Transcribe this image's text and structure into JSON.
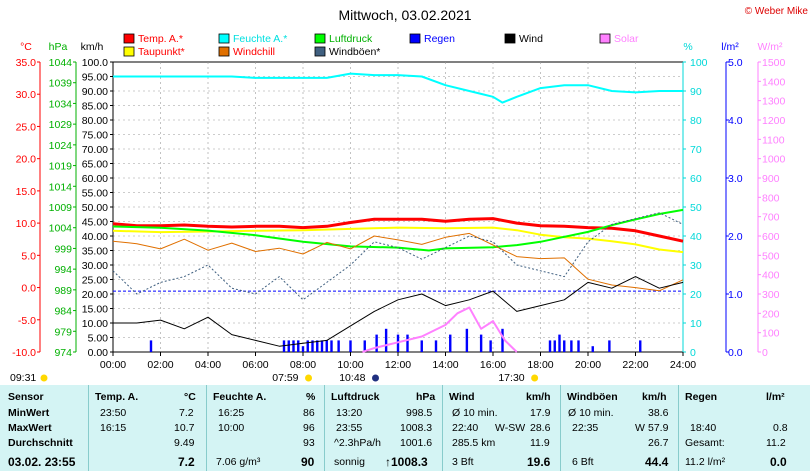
{
  "title": "Mittwoch, 03.02.2021",
  "credit": "© Weber Mike",
  "axis_units": {
    "temp": "°C",
    "pressure": "hPa",
    "wind": "km/h",
    "humidity": "%",
    "rain": "l/m²",
    "solar": "W/m²"
  },
  "legend": [
    {
      "label": "Temp. A.*",
      "color": "#ff0000",
      "text_color": "#ff0000"
    },
    {
      "label": "Feuchte A.*",
      "color": "#00ffff",
      "text_color": "#00e0e0"
    },
    {
      "label": "Luftdruck",
      "color": "#00ff00",
      "text_color": "#00b000"
    },
    {
      "label": "Regen",
      "color": "#0000ff",
      "text_color": "#0000ff"
    },
    {
      "label": "Wind",
      "color": "#000000",
      "text_color": "#000000"
    },
    {
      "label": "Solar",
      "color": "#ff80ff",
      "text_color": "#ff80ff"
    },
    {
      "label": "Taupunkt*",
      "color": "#ffff00",
      "text_color": "#ff0000"
    },
    {
      "label": "Windchill",
      "color": "#e07000",
      "text_color": "#ff0000"
    },
    {
      "label": "Windböen*",
      "color": "#406080",
      "text_color": "#000000"
    }
  ],
  "event_labels": {
    "sunrise": "07:59",
    "sunset": "17:30",
    "moon": "10:48",
    "now": "09:31"
  },
  "stats": {
    "sensor": {
      "header": "Sensor",
      "rows": [
        "MinWert",
        "MaxWert",
        "Durchschnitt"
      ],
      "footer": "03.02.  23:55"
    },
    "temp": {
      "header": "Temp. A.",
      "unit": "°C",
      "min_time": "23:50",
      "min": "7.2",
      "max_time": "16:15",
      "max": "10.7",
      "avg": "9.49",
      "current": "7.2"
    },
    "humidity": {
      "header": "Feuchte A.",
      "unit": "%",
      "min_time": "16:25",
      "min": "86",
      "max_time": "10:00",
      "max": "96",
      "avg": "93",
      "abs": "7.06 g/m³",
      "current": "90"
    },
    "pressure": {
      "header": "Luftdruck",
      "unit": "hPa",
      "min_time": "13:20",
      "min": "998.5",
      "max_time": "23:55",
      "max": "1008.3",
      "trend": "^2.3hPa/h",
      "avg": "1001.6",
      "weather": "sonnig",
      "current": "↑1008.3"
    },
    "wind": {
      "header": "Wind",
      "unit": "km/h",
      "min_label": "Ø 10 min.",
      "min": "17.9",
      "max_time": "22:40",
      "max_dir": "W-SW",
      "max": "28.6",
      "dist": "285.5 km",
      "avg": "11.9",
      "bft": "3 Bft",
      "current": "19.6"
    },
    "gust": {
      "header": "Windböen",
      "unit": "km/h",
      "min_label": "Ø 10 min.",
      "min": "38.6",
      "max_time": "22:35",
      "max_dir": "W",
      "max": "57.9",
      "avg": "26.7",
      "bft": "6 Bft",
      "current": "44.4"
    },
    "rain": {
      "header": "Regen",
      "unit": "l/m²",
      "max_time": "18:40",
      "max": "0.8",
      "total_label": "Gesamt:",
      "total": "11.2",
      "current": "11.2 l/m²",
      "current2": "0.0"
    }
  },
  "chart_data": {
    "type": "line",
    "title": "Mittwoch, 03.02.2021",
    "x_range_hours": [
      0,
      24
    ],
    "x_ticks": [
      "00:00",
      "02:00",
      "04:00",
      "06:00",
      "08:00",
      "10:00",
      "12:00",
      "14:00",
      "16:00",
      "18:00",
      "20:00",
      "22:00",
      "24:00"
    ],
    "axes": {
      "temp_c": {
        "range": [
          -10,
          35
        ],
        "ticks": [
          "35.0",
          "30.0",
          "25.0",
          "20.0",
          "15.0",
          "10.0",
          "5.0",
          "0.0",
          "-5.0",
          "-10.0"
        ]
      },
      "pressure_hpa": {
        "range": [
          974,
          1044
        ],
        "ticks": [
          "1044",
          "1039",
          "1034",
          "1029",
          "1024",
          "1019",
          "1014",
          "1009",
          "1004",
          "999",
          "994",
          "989",
          "984",
          "979",
          "974"
        ]
      },
      "wind_kmh": {
        "range": [
          0,
          100
        ],
        "ticks": [
          "100.0",
          "95.00",
          "90.00",
          "85.00",
          "80.00",
          "75.00",
          "70.00",
          "65.00",
          "60.00",
          "55.00",
          "50.00",
          "45.00",
          "40.00",
          "35.00",
          "30.00",
          "25.00",
          "20.00",
          "15.00",
          "10.00",
          "5.00",
          "0.00"
        ]
      },
      "humidity_pct": {
        "range": [
          0,
          100
        ],
        "ticks": [
          "100",
          "90",
          "80",
          "70",
          "60",
          "50",
          "40",
          "30",
          "20",
          "10",
          "0"
        ]
      },
      "rain_lm2": {
        "range": [
          0,
          5
        ],
        "ticks": [
          "5.0",
          "4.0",
          "3.0",
          "2.0",
          "1.0",
          "0.0"
        ]
      },
      "solar_wm2": {
        "range": [
          0,
          1500
        ],
        "ticks": [
          "1500",
          "1400",
          "1300",
          "1200",
          "1100",
          "1000",
          "900",
          "800",
          "700",
          "600",
          "500",
          "400",
          "300",
          "200",
          "100",
          "0"
        ]
      }
    },
    "series": [
      {
        "name": "Temp. A.*",
        "axis": "temp_c",
        "color": "#ff0000",
        "width": 3,
        "x": [
          0,
          1,
          2,
          3,
          4,
          5,
          6,
          7,
          8,
          9,
          10,
          11,
          12,
          13,
          14,
          15,
          16,
          17,
          18,
          19,
          20,
          21,
          22,
          23,
          24
        ],
        "y": [
          9.9,
          9.6,
          9.6,
          9.7,
          9.5,
          9.4,
          9.5,
          9.5,
          9.3,
          9.5,
          10.1,
          10.6,
          10.6,
          10.6,
          10.3,
          10.6,
          10.7,
          10.0,
          9.6,
          9.5,
          9.3,
          9.2,
          8.8,
          8.0,
          7.2
        ]
      },
      {
        "name": "Taupunkt*",
        "axis": "temp_c",
        "color": "#ffff00",
        "width": 2,
        "x": [
          0,
          2,
          4,
          6,
          8,
          10,
          12,
          14,
          16,
          17,
          18,
          19,
          20,
          21,
          22,
          23,
          24
        ],
        "y": [
          8.8,
          8.6,
          8.7,
          8.8,
          8.9,
          9.1,
          9.3,
          9.2,
          9.3,
          8.9,
          8.2,
          7.8,
          7.6,
          7.2,
          6.7,
          5.9,
          5.5
        ]
      },
      {
        "name": "Luftdruck",
        "axis": "pressure_hpa",
        "color": "#00ff00",
        "width": 2,
        "x": [
          0,
          2,
          4,
          6,
          8,
          10,
          12,
          13.3,
          14,
          16,
          17,
          18,
          19,
          20,
          21,
          22,
          23,
          24
        ],
        "y": [
          1004.3,
          1004.0,
          1003.3,
          1002.2,
          1000.6,
          999.5,
          999.2,
          998.5,
          999.0,
          999.3,
          999.8,
          1000.6,
          1001.8,
          1003.0,
          1004.6,
          1006.0,
          1007.3,
          1008.3
        ]
      },
      {
        "name": "Feuchte A.*",
        "axis": "humidity_pct",
        "color": "#00ffff",
        "width": 2,
        "x": [
          0,
          1,
          2,
          3,
          4,
          5,
          6,
          7,
          8,
          9,
          10,
          11,
          12,
          13,
          14,
          15,
          15.5,
          16,
          16.4,
          17,
          18,
          19,
          20,
          21,
          22,
          23,
          24
        ],
        "y": [
          95,
          95,
          95,
          95,
          95,
          95,
          94.5,
          94.5,
          94.5,
          94.5,
          96,
          95.5,
          95.5,
          95,
          92,
          90,
          89,
          88,
          86,
          88,
          91,
          92,
          92,
          90,
          89.5,
          90,
          90
        ]
      },
      {
        "name": "Windchill",
        "axis": "temp_c",
        "color": "#e07000",
        "width": 1,
        "x": [
          0,
          1,
          2,
          3,
          4,
          5,
          6,
          7,
          8,
          9,
          10,
          11,
          12,
          13,
          14,
          15,
          16,
          17,
          18,
          19,
          20,
          21,
          22,
          23,
          24
        ],
        "y": [
          7.2,
          6.8,
          6.0,
          7.5,
          5.8,
          6.9,
          5.6,
          6.1,
          5.2,
          7.0,
          6.0,
          8.0,
          7.4,
          6.7,
          7.8,
          8.4,
          6.6,
          4.8,
          4.5,
          4.6,
          1.3,
          0.4,
          0.0,
          -0.5,
          1.2
        ]
      },
      {
        "name": "Windböen*",
        "axis": "wind_kmh",
        "color": "#406080",
        "width": 1,
        "dash": true,
        "x": [
          0,
          1,
          2,
          3,
          4,
          5,
          6,
          7,
          8,
          9,
          10,
          11,
          12,
          13,
          14,
          15,
          16,
          17,
          18,
          19,
          20,
          21,
          22,
          23,
          24
        ],
        "y": [
          28,
          20,
          24,
          26,
          30,
          22,
          20,
          26,
          18,
          24,
          30,
          38,
          36,
          32,
          36,
          40,
          38,
          30,
          28,
          26,
          38,
          44,
          46,
          48,
          44
        ]
      },
      {
        "name": "Wind",
        "axis": "wind_kmh",
        "color": "#000000",
        "width": 1,
        "x": [
          0,
          1,
          2,
          3,
          4,
          5,
          6,
          7,
          8,
          9,
          10,
          11,
          12,
          13,
          14,
          15,
          16,
          17,
          18,
          19,
          20,
          21,
          22,
          23,
          24
        ],
        "y": [
          10,
          10,
          11,
          8,
          12,
          6,
          4,
          2,
          3,
          4,
          9,
          14,
          18,
          20,
          16,
          18,
          21,
          14,
          16,
          18,
          24,
          22,
          26,
          22,
          24
        ]
      },
      {
        "name": "Solar",
        "axis": "solar_wm2",
        "color": "#ff80ff",
        "width": 2,
        "x": [
          10.5,
          11,
          12,
          13,
          14,
          14.5,
          15,
          15.5,
          16,
          16.5,
          17
        ],
        "y": [
          0,
          20,
          50,
          80,
          140,
          200,
          230,
          120,
          160,
          60,
          0
        ]
      }
    ],
    "rain_bars": {
      "name": "Regen",
      "axis": "rain_lm2",
      "color": "#0000ff",
      "x": [
        1.6,
        7.2,
        7.4,
        7.6,
        7.8,
        8.0,
        8.2,
        8.4,
        8.6,
        8.8,
        9.0,
        9.2,
        9.5,
        10.0,
        10.6,
        11.1,
        11.5,
        12.0,
        12.4,
        13.0,
        13.6,
        14.2,
        14.9,
        15.5,
        15.9,
        16.4,
        18.4,
        18.6,
        18.8,
        19.0,
        19.3,
        19.6,
        20.2,
        20.9,
        22.2
      ],
      "values": [
        0.2,
        0.2,
        0.2,
        0.2,
        0.2,
        0.1,
        0.2,
        0.2,
        0.2,
        0.2,
        0.2,
        0.2,
        0.2,
        0.2,
        0.2,
        0.3,
        0.4,
        0.3,
        0.3,
        0.2,
        0.2,
        0.3,
        0.4,
        0.3,
        0.2,
        0.4,
        0.2,
        0.2,
        0.3,
        0.2,
        0.2,
        0.2,
        0.1,
        0.2,
        0.2
      ]
    },
    "reference_line": {
      "axis": "wind_kmh",
      "value": 21,
      "color": "#0000ff",
      "dash": true
    }
  }
}
